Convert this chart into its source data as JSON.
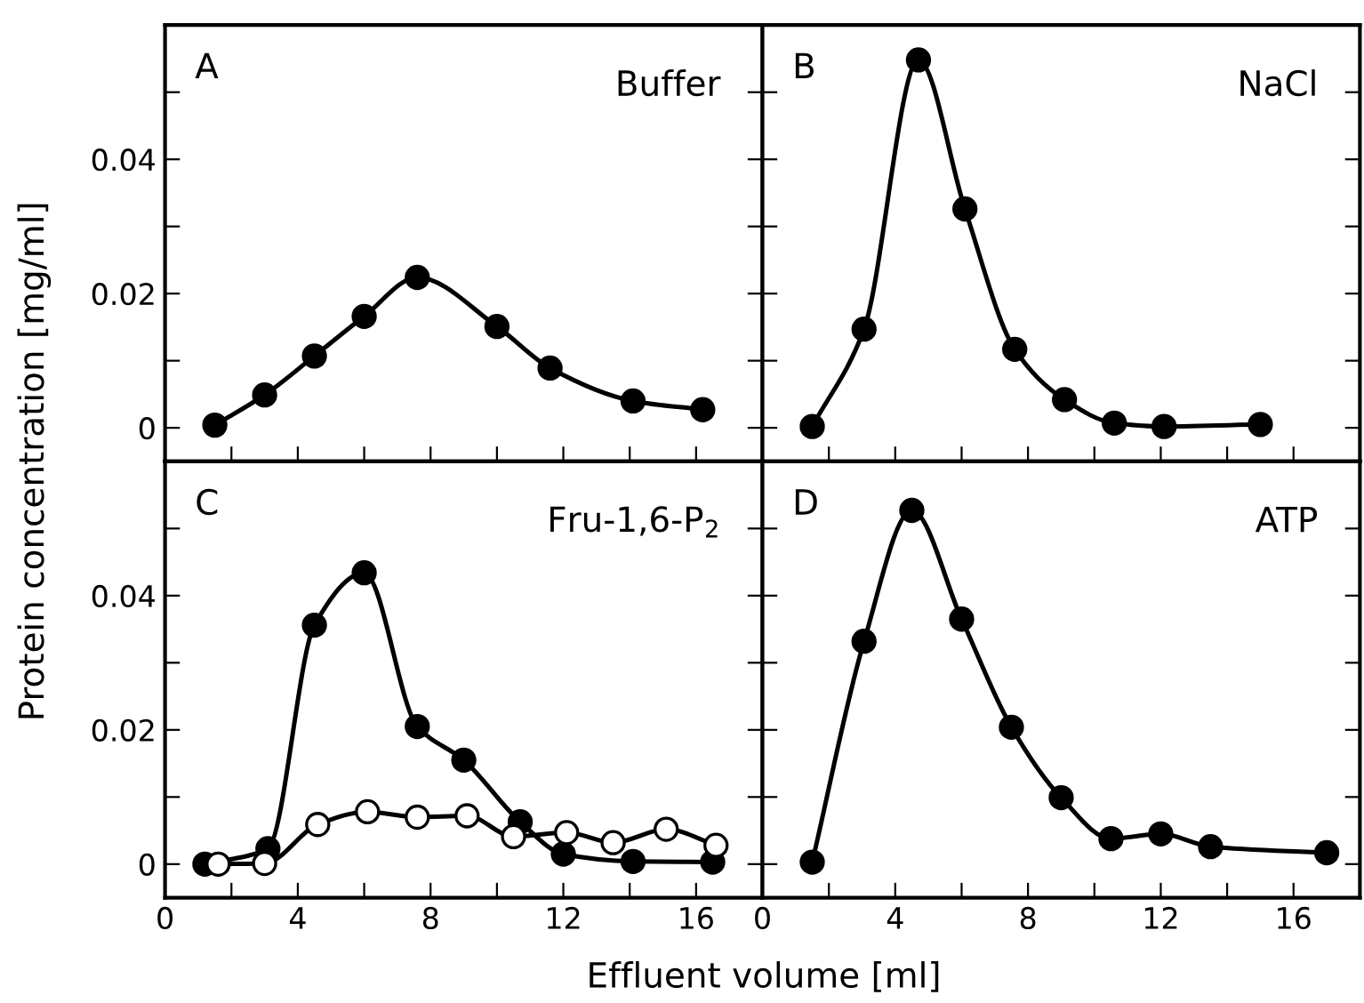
{
  "chart_data": [
    {
      "type": "line",
      "title": "Buffer",
      "annotations": [
        "A"
      ],
      "ylabel": "Protein concentration [mg/ml]",
      "marker": "circle",
      "line_style": "solid",
      "grid": false,
      "legend": false,
      "tick_labels": "y",
      "xlim": [
        0,
        18
      ],
      "xticks": [
        0,
        {
          "value": 2,
          "label": null
        },
        4,
        {
          "value": 6,
          "label": null
        },
        8,
        {
          "value": 10,
          "label": null
        },
        12,
        {
          "value": 14,
          "label": null
        },
        16
      ],
      "ylim": [
        -0.005,
        0.06
      ],
      "yticks": [
        0,
        {
          "value": 0.01,
          "label": null
        },
        0.02,
        {
          "value": 0.03,
          "label": null
        },
        0.04,
        {
          "value": 0.05,
          "label": null
        }
      ],
      "series": [
        {
          "color": "#000000",
          "x": [
            1.5,
            3.0,
            4.5,
            6.0,
            7.6,
            10.0,
            11.6,
            14.1,
            16.2
          ],
          "values": [
            0.0004,
            0.0049,
            0.0107,
            0.0166,
            0.0224,
            0.0151,
            0.0089,
            0.004,
            0.0027
          ]
        }
      ]
    },
    {
      "type": "line",
      "title": "NaCl",
      "annotations": [
        "B"
      ],
      "marker": "circle",
      "line_style": "solid",
      "grid": false,
      "legend": false,
      "tick_labels": false,
      "xlim": [
        0,
        18
      ],
      "xticks": [
        0,
        {
          "value": 2,
          "label": null
        },
        4,
        {
          "value": 6,
          "label": null
        },
        8,
        {
          "value": 10,
          "label": null
        },
        12,
        {
          "value": 14,
          "label": null
        },
        16
      ],
      "ylim": [
        -0.005,
        0.06
      ],
      "yticks": [
        0,
        {
          "value": 0.01,
          "label": null
        },
        0.02,
        {
          "value": 0.03,
          "label": null
        },
        0.04,
        {
          "value": 0.05,
          "label": null
        }
      ],
      "series": [
        {
          "color": "#000000",
          "x": [
            1.5,
            3.06,
            4.7,
            6.1,
            7.6,
            9.1,
            10.6,
            12.1,
            15.0
          ],
          "values": [
            0.0002,
            0.0147,
            0.0548,
            0.0326,
            0.0117,
            0.0042,
            0.0007,
            0.0002,
            0.0005
          ]
        }
      ]
    },
    {
      "type": "line",
      "title": "Fru-1,6-P$_{2}$",
      "annotations": [
        "C"
      ],
      "xlabel": "Effluent volume [ml]",
      "marker": "circle",
      "line_style": "solid",
      "grid": false,
      "legend": false,
      "xlim": [
        0,
        18
      ],
      "xticks": [
        0,
        {
          "value": 2,
          "label": null
        },
        4,
        {
          "value": 6,
          "label": null
        },
        8,
        {
          "value": 10,
          "label": null
        },
        12,
        {
          "value": 14,
          "label": null
        },
        16
      ],
      "ylim": [
        -0.005,
        0.06
      ],
      "yticks": [
        0,
        {
          "value": 0.01,
          "label": null
        },
        0.02,
        {
          "value": 0.03,
          "label": null
        },
        0.04,
        {
          "value": 0.05,
          "label": null
        }
      ],
      "series": [
        {
          "color": "#000000",
          "x": [
            1.2,
            3.1,
            4.5,
            6.0,
            7.6,
            9.0,
            10.7,
            12.0,
            14.1,
            16.5
          ],
          "values": [
            0.0,
            0.0023,
            0.0356,
            0.0434,
            0.0205,
            0.0155,
            0.0063,
            0.0015,
            0.0004,
            0.0003
          ]
        },
        {
          "color": "#ffffff",
          "x": [
            1.6,
            3.0,
            4.6,
            6.1,
            7.6,
            9.1,
            10.5,
            12.1,
            13.5,
            15.1,
            16.6
          ],
          "values": [
            0.0,
            0.0001,
            0.0059,
            0.0078,
            0.007,
            0.0072,
            0.0041,
            0.0047,
            0.0032,
            0.0052,
            0.0028
          ]
        }
      ]
    },
    {
      "type": "line",
      "title": "ATP",
      "annotations": [
        "D"
      ],
      "marker": "circle",
      "line_style": "solid",
      "grid": false,
      "legend": false,
      "tick_labels": "x",
      "xlim": [
        0,
        18
      ],
      "xticks": [
        0,
        {
          "value": 2,
          "label": null
        },
        4,
        {
          "value": 6,
          "label": null
        },
        8,
        {
          "value": 10,
          "label": null
        },
        12,
        {
          "value": 14,
          "label": null
        },
        16
      ],
      "ylim": [
        -0.005,
        0.06
      ],
      "yticks": [
        0,
        {
          "value": 0.01,
          "label": null
        },
        0.02,
        {
          "value": 0.03,
          "label": null
        },
        0.04,
        {
          "value": 0.05,
          "label": null
        }
      ],
      "series": [
        {
          "color": "#000000",
          "x": [
            1.5,
            3.06,
            4.5,
            6.0,
            7.5,
            9.0,
            10.5,
            12.0,
            13.5,
            17.0
          ],
          "values": [
            0.0003,
            0.0332,
            0.0527,
            0.0365,
            0.0204,
            0.0099,
            0.0038,
            0.0045,
            0.0026,
            0.0017
          ]
        }
      ]
    }
  ]
}
